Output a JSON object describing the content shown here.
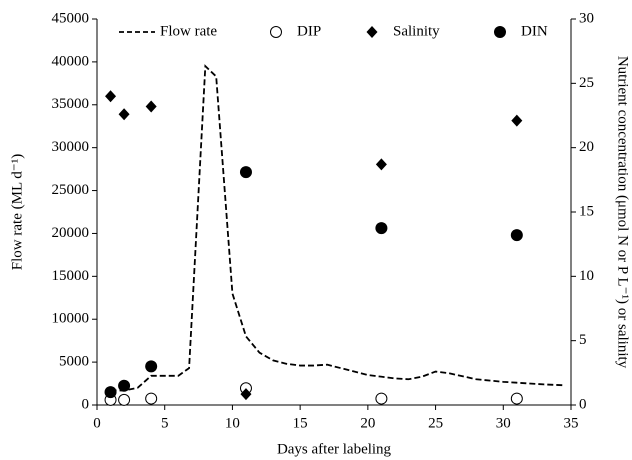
{
  "chart_data": {
    "type": "line-scatter",
    "xlabel": "Days after labeling",
    "ylabel": "Flow rate (ML d⁻¹)",
    "y2label": "Nutrient concentration (μmol N or P L⁻¹) or salinity",
    "xlim": [
      0,
      35
    ],
    "xticks": [
      0,
      5,
      10,
      15,
      20,
      25,
      30,
      35
    ],
    "ylim": [
      0,
      45000
    ],
    "yticks": [
      0,
      5000,
      10000,
      15000,
      20000,
      25000,
      30000,
      35000,
      40000,
      45000
    ],
    "y2lim": [
      0,
      30
    ],
    "y2ticks": [
      0,
      5,
      10,
      15,
      20,
      25,
      30
    ],
    "legend": "top",
    "series": [
      {
        "name": "Flow rate",
        "color": "#000000",
        "marker": "dashed-line",
        "x": [
          1,
          2,
          3,
          4,
          5,
          6,
          6.8,
          8,
          8.8,
          10,
          11,
          12,
          13,
          14,
          15,
          16,
          17,
          18,
          20,
          22,
          23,
          24,
          25,
          26,
          28,
          30,
          31,
          33,
          34.5
        ],
        "values": [
          1700,
          1700,
          2000,
          3400,
          3400,
          3400,
          4300,
          39500,
          38300,
          13000,
          8000,
          6100,
          5200,
          4800,
          4600,
          4600,
          4700,
          4300,
          3500,
          3100,
          3000,
          3300,
          3900,
          3700,
          3000,
          2700,
          2600,
          2400,
          2300
        ]
      },
      {
        "name": "DIP",
        "color": "#000000",
        "marker": "open-circle",
        "axis": "y2",
        "x": [
          1,
          2,
          4,
          11,
          21,
          31
        ],
        "values": [
          0.4,
          0.4,
          0.5,
          1.3,
          0.5,
          0.5
        ]
      },
      {
        "name": "Salinity",
        "color": "#000000",
        "marker": "diamond",
        "axis": "y2",
        "x": [
          1,
          2,
          4,
          11,
          21,
          31
        ],
        "values": [
          24.0,
          22.6,
          23.2,
          0.85,
          18.7,
          22.1
        ]
      },
      {
        "name": "DIN",
        "color": "#000000",
        "marker": "filled-circle",
        "axis": "y2",
        "x": [
          1,
          2,
          4,
          11,
          21,
          31
        ],
        "values": [
          1.0,
          1.5,
          3.0,
          18.1,
          13.75,
          13.2
        ]
      }
    ]
  }
}
